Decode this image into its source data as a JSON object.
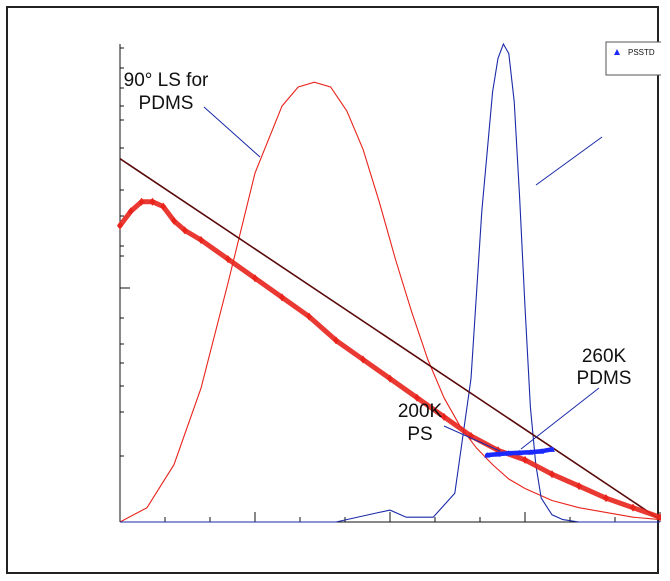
{
  "chart_data": {
    "type": "line",
    "title": "",
    "xlabel": "",
    "ylabel": "",
    "xlim": [
      0,
      100
    ],
    "ylim": [
      0,
      100
    ],
    "grid": false,
    "legend": {
      "placement": "top-right",
      "entries": [
        "PSSTD"
      ]
    },
    "annotations": [
      {
        "id": "pdms-ls",
        "lines": [
          "90° LS for",
          "PDMS"
        ]
      },
      {
        "id": "pdms-260k",
        "lines": [
          "260K",
          "PDMS"
        ]
      },
      {
        "id": "ps-200k",
        "lines": [
          "200K",
          "PS"
        ]
      }
    ],
    "series": [
      {
        "color": "#e8241c",
        "style": "line",
        "x": [
          0,
          5,
          10,
          15,
          20,
          25,
          30,
          33,
          36,
          39,
          42,
          45,
          48,
          51,
          54,
          57,
          60,
          63,
          66,
          69,
          72,
          75,
          80,
          85,
          90,
          95,
          100
        ],
        "y": [
          0,
          3,
          12,
          28,
          50,
          73,
          87,
          91,
          92,
          91,
          86,
          78,
          67,
          55,
          44,
          34,
          26,
          20,
          15.5,
          12,
          9,
          7,
          4.5,
          3,
          2,
          1,
          0.5
        ]
      },
      {
        "color": "#1a2aa8",
        "style": "line",
        "x": [
          0,
          20,
          40,
          48,
          50,
          53,
          58,
          62,
          65,
          67,
          69,
          70,
          71,
          72,
          73,
          74,
          75,
          76,
          77,
          78,
          80,
          82,
          85,
          90,
          95,
          100
        ],
        "y": [
          0,
          0,
          0,
          2,
          2.5,
          1,
          1,
          6,
          30,
          65,
          90,
          97,
          100,
          98,
          88,
          68,
          45,
          24,
          12,
          5,
          1.5,
          0.5,
          0,
          0,
          0,
          0
        ]
      },
      {
        "color": "#5a0a0a",
        "style": "line",
        "x": [
          0,
          100
        ],
        "y": [
          76,
          0.5
        ]
      },
      {
        "color": "#e8241c",
        "style": "points",
        "x": [
          0,
          2,
          4,
          6,
          8,
          10,
          12,
          15,
          20,
          25,
          30,
          35,
          40,
          45,
          50,
          55,
          60,
          65,
          70,
          75,
          80,
          85,
          90,
          95,
          100
        ],
        "y": [
          62,
          65,
          67,
          67,
          66,
          63,
          61,
          59,
          55,
          51,
          47,
          43,
          38,
          34,
          30,
          26,
          22,
          18,
          15,
          13,
          10,
          7.5,
          5,
          3,
          1
        ]
      },
      {
        "name": "PSSTD",
        "color": "#1a2aff",
        "style": "points",
        "x": [
          68,
          70,
          72,
          74,
          76,
          78,
          80
        ],
        "y": [
          14,
          14.2,
          14.4,
          14.5,
          14.6,
          14.8,
          15.2
        ]
      }
    ]
  }
}
